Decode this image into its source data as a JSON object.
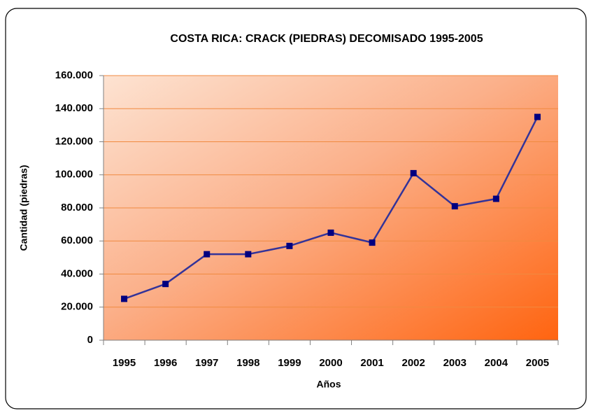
{
  "chart_data": {
    "type": "line",
    "title": "COSTA RICA:  CRACK (PIEDRAS) DECOMISADO 1995-2005",
    "x_label": "Años",
    "y_label": "Cantidad (piedras)",
    "categories": [
      "1995",
      "1996",
      "1997",
      "1998",
      "1999",
      "2000",
      "2001",
      "2002",
      "2003",
      "2004",
      "2005"
    ],
    "series": [
      {
        "name": "Cantidad",
        "color": "#333399",
        "marker_color": "#000080",
        "values": [
          25000,
          34000,
          52000,
          52000,
          57000,
          65000,
          59000,
          101000,
          81000,
          85500,
          135000
        ]
      }
    ],
    "ylim": [
      0,
      160000
    ],
    "yticks": [
      0,
      {
        "value": 20000,
        "label": "20.000"
      },
      {
        "value": 40000,
        "label": "40.000"
      },
      {
        "value": 60000,
        "label": "60.000"
      },
      {
        "value": 80000,
        "label": "80.000"
      },
      {
        "value": 100000,
        "label": "100.000"
      },
      {
        "value": 120000,
        "label": "120.000"
      },
      {
        "value": 140000,
        "label": "140.000"
      },
      {
        "value": 160000,
        "label": "160.000"
      }
    ],
    "grid": true
  }
}
